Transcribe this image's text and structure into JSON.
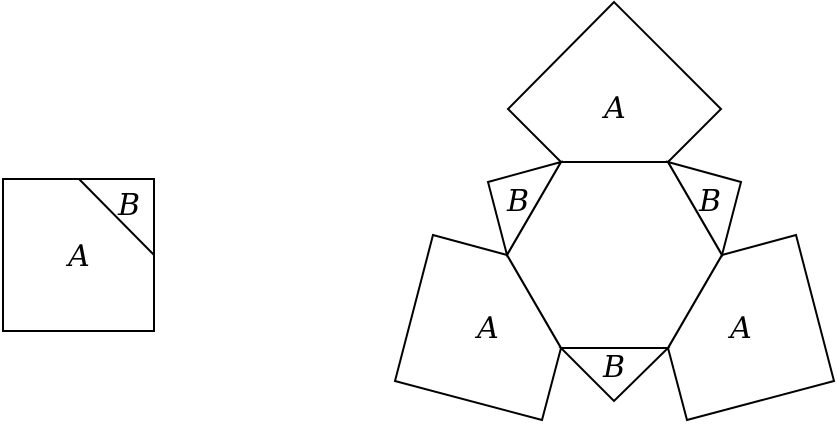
{
  "left_figure": {
    "region_big": "A",
    "region_corner": "B"
  },
  "right_figure": {
    "piece_top": "A",
    "piece_lower_left": "A",
    "piece_lower_right": "A",
    "triangle_upper_left": "B",
    "triangle_upper_right": "B",
    "triangle_bottom": "B"
  }
}
